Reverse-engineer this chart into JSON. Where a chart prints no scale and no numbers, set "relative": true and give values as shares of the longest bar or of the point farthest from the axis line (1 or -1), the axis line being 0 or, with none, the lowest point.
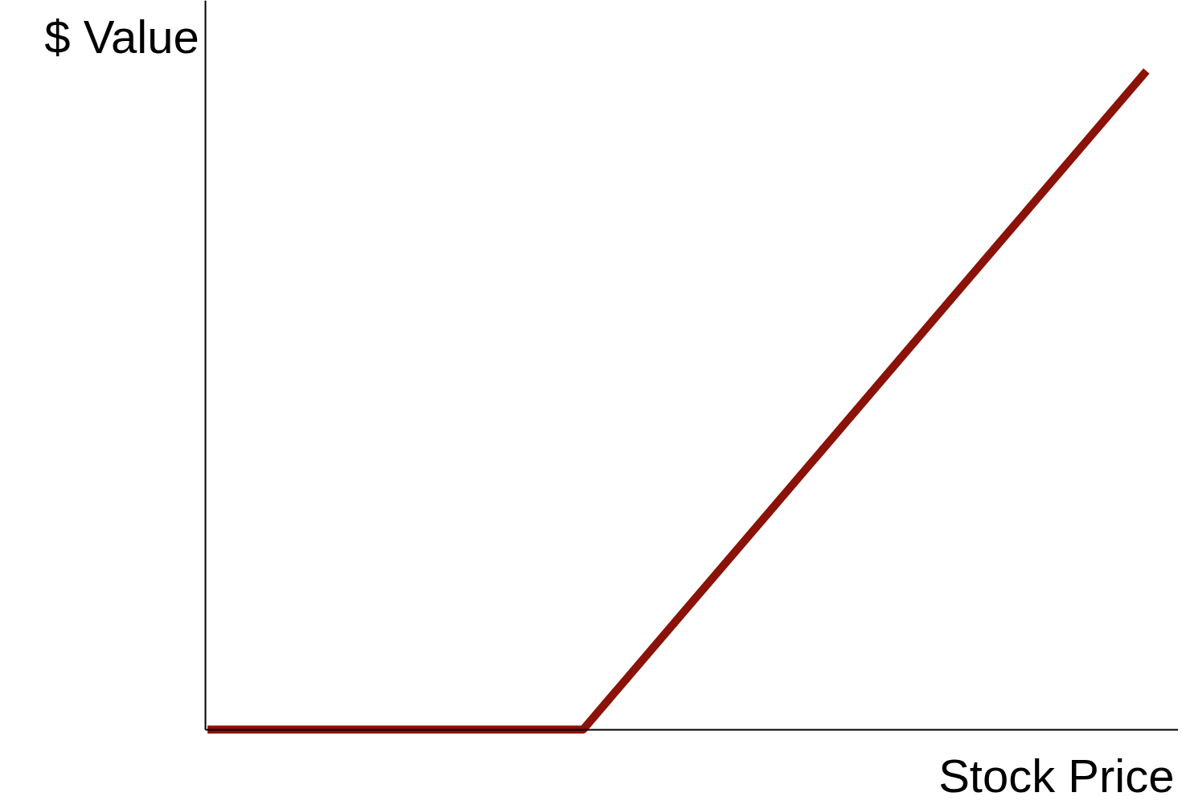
{
  "chart_data": {
    "type": "line",
    "relative": true,
    "xlabel": "Stock Price",
    "ylabel": "$ Value",
    "categories": [
      null,
      null,
      null,
      null,
      null,
      null
    ],
    "series": [
      {
        "color": "#8b1208",
        "values": [
          0,
          0,
          0,
          0.3333,
          0.6667,
          1
        ]
      }
    ],
    "marker": "none",
    "line_style": "solid"
  }
}
